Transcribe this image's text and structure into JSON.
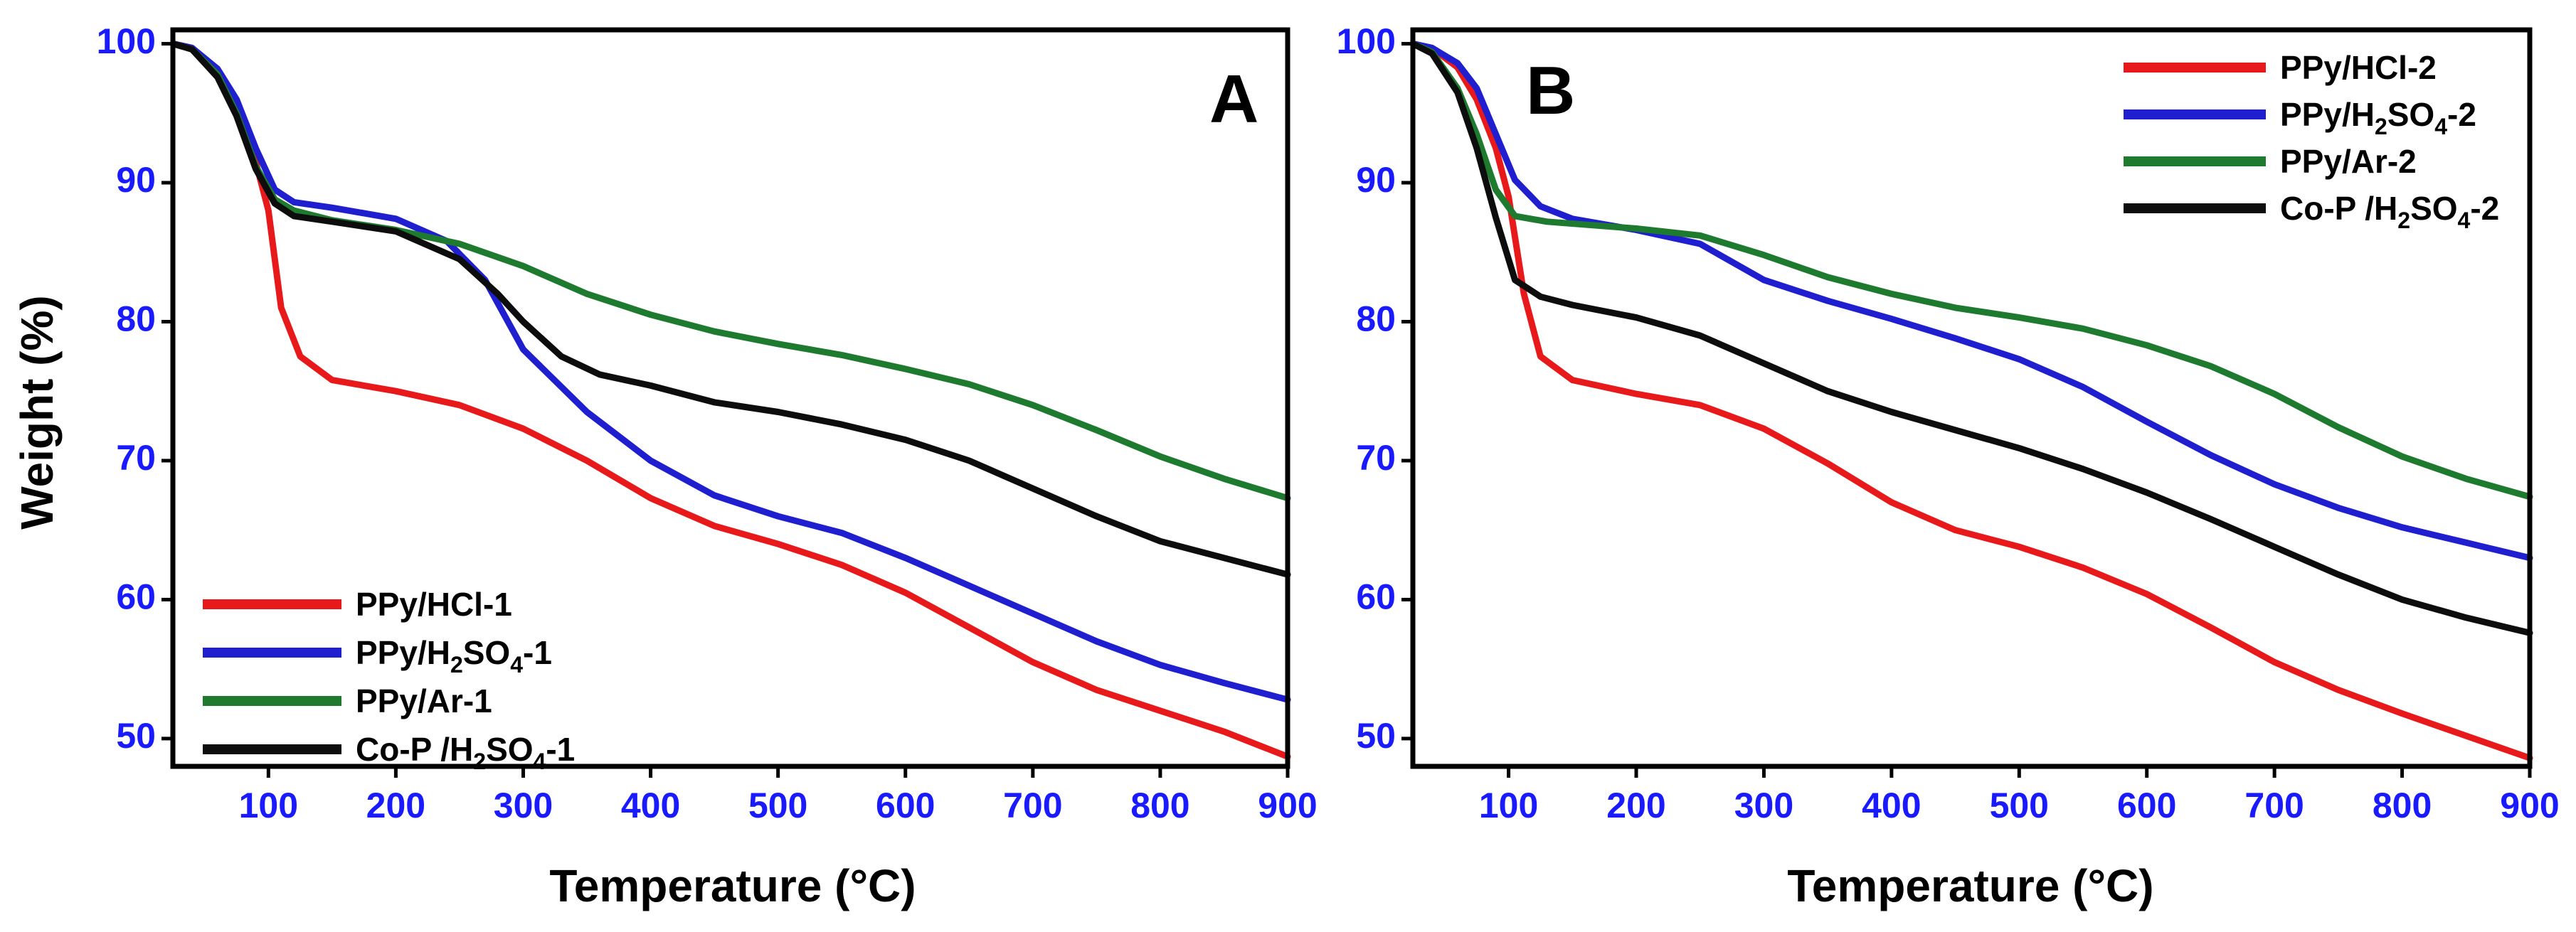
{
  "figure": {
    "ylabel": "Weight (%)",
    "tick_color": "#1a1aff",
    "axis_color": "#000000"
  },
  "chart_data": [
    {
      "type": "line",
      "panel_label": "A",
      "xlabel": "Temperature (°C)",
      "ylabel": "Weight (%)",
      "xlim": [
        25,
        900
      ],
      "ylim": [
        48,
        101
      ],
      "xticks": [
        100,
        200,
        300,
        400,
        500,
        600,
        700,
        800,
        900
      ],
      "yticks": [
        50,
        60,
        70,
        80,
        90,
        100
      ],
      "legend_position": "bottom-left",
      "series": [
        {
          "name": "PPy/HCl-1",
          "name_main": "PPy/HCl-1",
          "name_sub1": "",
          "name_mid": "",
          "name_sub2": "",
          "name_end": "",
          "color": "#e8191b",
          "points": [
            [
              25,
              100
            ],
            [
              40,
              99.7
            ],
            [
              60,
              98
            ],
            [
              75,
              95.5
            ],
            [
              90,
              91.5
            ],
            [
              100,
              88
            ],
            [
              110,
              81
            ],
            [
              125,
              77.5
            ],
            [
              150,
              75.8
            ],
            [
              200,
              75
            ],
            [
              250,
              74
            ],
            [
              300,
              72.3
            ],
            [
              350,
              70
            ],
            [
              400,
              67.3
            ],
            [
              450,
              65.3
            ],
            [
              500,
              64
            ],
            [
              550,
              62.5
            ],
            [
              600,
              60.5
            ],
            [
              650,
              58
            ],
            [
              700,
              55.5
            ],
            [
              750,
              53.5
            ],
            [
              800,
              52
            ],
            [
              850,
              50.5
            ],
            [
              900,
              48.7
            ]
          ]
        },
        {
          "name": "PPy/H2SO4-1",
          "name_main": "PPy/H",
          "name_sub1": "2",
          "name_mid": "SO",
          "name_sub2": "4",
          "name_end": "-1",
          "color": "#1f1fcf",
          "points": [
            [
              25,
              100
            ],
            [
              40,
              99.7
            ],
            [
              60,
              98.2
            ],
            [
              75,
              96
            ],
            [
              90,
              92.5
            ],
            [
              105,
              89.5
            ],
            [
              120,
              88.6
            ],
            [
              150,
              88.2
            ],
            [
              200,
              87.4
            ],
            [
              240,
              85.8
            ],
            [
              270,
              83
            ],
            [
              300,
              78
            ],
            [
              350,
              73.5
            ],
            [
              400,
              70
            ],
            [
              450,
              67.5
            ],
            [
              500,
              66
            ],
            [
              550,
              64.8
            ],
            [
              600,
              63
            ],
            [
              650,
              61
            ],
            [
              700,
              59
            ],
            [
              750,
              57
            ],
            [
              800,
              55.3
            ],
            [
              850,
              54
            ],
            [
              900,
              52.8
            ]
          ]
        },
        {
          "name": "PPy/Ar-1",
          "name_main": "PPy/Ar-1",
          "name_sub1": "",
          "name_mid": "",
          "name_sub2": "",
          "name_end": "",
          "color": "#1e7a2e",
          "points": [
            [
              25,
              100
            ],
            [
              40,
              99.6
            ],
            [
              60,
              97.8
            ],
            [
              75,
              95
            ],
            [
              90,
              91.2
            ],
            [
              105,
              88.8
            ],
            [
              120,
              88
            ],
            [
              150,
              87.3
            ],
            [
              200,
              86.6
            ],
            [
              250,
              85.6
            ],
            [
              300,
              84
            ],
            [
              350,
              82
            ],
            [
              400,
              80.5
            ],
            [
              450,
              79.3
            ],
            [
              500,
              78.4
            ],
            [
              550,
              77.6
            ],
            [
              600,
              76.6
            ],
            [
              650,
              75.5
            ],
            [
              700,
              74
            ],
            [
              750,
              72.2
            ],
            [
              800,
              70.3
            ],
            [
              850,
              68.7
            ],
            [
              900,
              67.3
            ]
          ]
        },
        {
          "name": "Co-P /H2SO4-1",
          "name_main": "Co-P /H",
          "name_sub1": "2",
          "name_mid": "SO",
          "name_sub2": "4",
          "name_end": "-1",
          "color": "#0d0d0d",
          "points": [
            [
              25,
              100
            ],
            [
              40,
              99.6
            ],
            [
              60,
              97.6
            ],
            [
              75,
              94.8
            ],
            [
              90,
              91
            ],
            [
              105,
              88.5
            ],
            [
              120,
              87.6
            ],
            [
              150,
              87.2
            ],
            [
              200,
              86.5
            ],
            [
              250,
              84.5
            ],
            [
              280,
              82
            ],
            [
              300,
              80
            ],
            [
              330,
              77.5
            ],
            [
              360,
              76.2
            ],
            [
              400,
              75.4
            ],
            [
              450,
              74.2
            ],
            [
              500,
              73.5
            ],
            [
              550,
              72.6
            ],
            [
              600,
              71.5
            ],
            [
              650,
              70
            ],
            [
              700,
              68
            ],
            [
              750,
              66
            ],
            [
              800,
              64.2
            ],
            [
              850,
              63
            ],
            [
              900,
              61.8
            ]
          ]
        }
      ]
    },
    {
      "type": "line",
      "panel_label": "B",
      "xlabel": "Temperature (°C)",
      "ylabel": "",
      "xlim": [
        25,
        900
      ],
      "ylim": [
        48,
        101
      ],
      "xticks": [
        100,
        200,
        300,
        400,
        500,
        600,
        700,
        800,
        900
      ],
      "yticks": [
        50,
        60,
        70,
        80,
        90,
        100
      ],
      "legend_position": "top-right",
      "series": [
        {
          "name": "PPy/HCl-2",
          "name_main": "PPy/HCl-2",
          "name_sub1": "",
          "name_mid": "",
          "name_sub2": "",
          "name_end": "",
          "color": "#e8191b",
          "points": [
            [
              25,
              100
            ],
            [
              40,
              99.7
            ],
            [
              60,
              98.3
            ],
            [
              75,
              96
            ],
            [
              90,
              92.5
            ],
            [
              100,
              89
            ],
            [
              112,
              82
            ],
            [
              125,
              77.5
            ],
            [
              150,
              75.8
            ],
            [
              200,
              74.8
            ],
            [
              250,
              74
            ],
            [
              300,
              72.3
            ],
            [
              350,
              69.8
            ],
            [
              400,
              67
            ],
            [
              450,
              65
            ],
            [
              500,
              63.8
            ],
            [
              550,
              62.3
            ],
            [
              600,
              60.4
            ],
            [
              650,
              58
            ],
            [
              700,
              55.5
            ],
            [
              750,
              53.5
            ],
            [
              800,
              51.8
            ],
            [
              850,
              50.2
            ],
            [
              900,
              48.6
            ]
          ]
        },
        {
          "name": "PPy/H2SO4-2",
          "name_main": "PPy/H",
          "name_sub1": "2",
          "name_mid": "SO",
          "name_sub2": "4",
          "name_end": "-2",
          "color": "#1f1fcf",
          "points": [
            [
              25,
              100
            ],
            [
              40,
              99.7
            ],
            [
              60,
              98.6
            ],
            [
              75,
              96.8
            ],
            [
              90,
              93.5
            ],
            [
              105,
              90.2
            ],
            [
              125,
              88.3
            ],
            [
              150,
              87.4
            ],
            [
              200,
              86.6
            ],
            [
              250,
              85.6
            ],
            [
              300,
              83
            ],
            [
              350,
              81.5
            ],
            [
              400,
              80.2
            ],
            [
              450,
              78.8
            ],
            [
              500,
              77.3
            ],
            [
              550,
              75.3
            ],
            [
              600,
              72.8
            ],
            [
              650,
              70.4
            ],
            [
              700,
              68.3
            ],
            [
              750,
              66.6
            ],
            [
              800,
              65.2
            ],
            [
              850,
              64.1
            ],
            [
              900,
              63
            ]
          ]
        },
        {
          "name": "PPy/Ar-2",
          "name_main": "PPy/Ar-2",
          "name_sub1": "",
          "name_mid": "",
          "name_sub2": "",
          "name_end": "",
          "color": "#1e7a2e",
          "points": [
            [
              25,
              100
            ],
            [
              40,
              99.4
            ],
            [
              60,
              96.8
            ],
            [
              75,
              93.5
            ],
            [
              90,
              89.5
            ],
            [
              105,
              87.6
            ],
            [
              130,
              87.2
            ],
            [
              200,
              86.7
            ],
            [
              250,
              86.2
            ],
            [
              300,
              84.8
            ],
            [
              350,
              83.2
            ],
            [
              400,
              82
            ],
            [
              450,
              81
            ],
            [
              500,
              80.3
            ],
            [
              550,
              79.5
            ],
            [
              600,
              78.3
            ],
            [
              650,
              76.8
            ],
            [
              700,
              74.8
            ],
            [
              750,
              72.4
            ],
            [
              800,
              70.3
            ],
            [
              850,
              68.7
            ],
            [
              900,
              67.4
            ]
          ]
        },
        {
          "name": "Co-P /H2SO4-2",
          "name_main": "Co-P /H",
          "name_sub1": "2",
          "name_mid": "SO",
          "name_sub2": "4",
          "name_end": "-2",
          "color": "#0d0d0d",
          "points": [
            [
              25,
              100
            ],
            [
              40,
              99.3
            ],
            [
              60,
              96.5
            ],
            [
              75,
              92.5
            ],
            [
              90,
              87.5
            ],
            [
              105,
              83
            ],
            [
              125,
              81.8
            ],
            [
              150,
              81.2
            ],
            [
              200,
              80.3
            ],
            [
              250,
              79
            ],
            [
              300,
              77
            ],
            [
              350,
              75
            ],
            [
              400,
              73.5
            ],
            [
              450,
              72.2
            ],
            [
              500,
              70.9
            ],
            [
              550,
              69.4
            ],
            [
              600,
              67.7
            ],
            [
              650,
              65.8
            ],
            [
              700,
              63.8
            ],
            [
              750,
              61.8
            ],
            [
              800,
              60
            ],
            [
              850,
              58.7
            ],
            [
              900,
              57.6
            ]
          ]
        }
      ]
    }
  ]
}
